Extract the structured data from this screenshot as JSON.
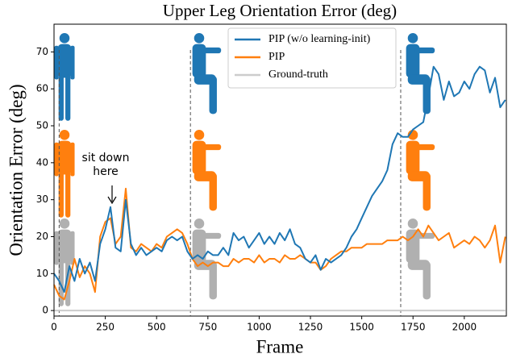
{
  "chart_data": {
    "type": "line",
    "title": "Upper Leg Orientation Error (deg)",
    "x_label": "Frame",
    "y_label": "Orientation Error (deg)",
    "x": [
      0,
      25,
      50,
      75,
      100,
      125,
      150,
      175,
      200,
      225,
      250,
      275,
      300,
      325,
      350,
      375,
      400,
      425,
      450,
      475,
      500,
      525,
      550,
      575,
      600,
      625,
      650,
      675,
      700,
      725,
      750,
      775,
      800,
      825,
      850,
      875,
      900,
      925,
      950,
      975,
      1000,
      1025,
      1050,
      1075,
      1100,
      1125,
      1150,
      1175,
      1200,
      1225,
      1250,
      1275,
      1300,
      1325,
      1350,
      1375,
      1400,
      1425,
      1450,
      1475,
      1500,
      1525,
      1550,
      1575,
      1600,
      1625,
      1650,
      1675,
      1700,
      1725,
      1750,
      1775,
      1800,
      1825,
      1850,
      1875,
      1900,
      1925,
      1950,
      1975,
      2000,
      2025,
      2050,
      2075,
      2100,
      2125,
      2150,
      2175,
      2200
    ],
    "series": [
      {
        "name": "PIP (w/o learning-init)",
        "color": "#1f77b4",
        "values": [
          10,
          8,
          5,
          12,
          8,
          14,
          10,
          13,
          8,
          18,
          22,
          28,
          17,
          16,
          30,
          18,
          15,
          17,
          15,
          16,
          17,
          16,
          19,
          20,
          19,
          20,
          16,
          14,
          15,
          14,
          16,
          15,
          15,
          17,
          15,
          21,
          19,
          20,
          17,
          19,
          21,
          18,
          20,
          18,
          21,
          19,
          22,
          18,
          17,
          14,
          13,
          15,
          11,
          14,
          13,
          14,
          15,
          17,
          20,
          22,
          25,
          28,
          31,
          33,
          35,
          38,
          45,
          48,
          47,
          47,
          49,
          50,
          51,
          58,
          66,
          64,
          57,
          62,
          58,
          59,
          62,
          60,
          64,
          66,
          65,
          59,
          63,
          55,
          57
        ]
      },
      {
        "name": "PIP",
        "color": "#ff7f0e",
        "values": [
          7,
          4,
          3,
          8,
          14,
          9,
          12,
          10,
          5,
          20,
          24,
          25,
          18,
          20,
          33,
          17,
          16,
          18,
          17,
          16,
          18,
          17,
          20,
          21,
          22,
          21,
          18,
          14,
          12,
          13,
          12,
          13,
          13,
          12,
          12,
          14,
          13,
          14,
          14,
          13,
          15,
          13,
          14,
          14,
          13,
          15,
          14,
          14,
          15,
          14,
          13,
          13,
          11,
          12,
          14,
          15,
          16,
          16,
          17,
          17,
          17,
          18,
          18,
          18,
          18,
          19,
          19,
          19,
          20,
          19,
          20,
          22,
          20,
          23,
          21,
          19,
          20,
          21,
          17,
          18,
          19,
          18,
          20,
          19,
          17,
          19,
          23,
          13,
          20
        ]
      },
      {
        "name": "Ground-truth",
        "color": "#cccccc",
        "values": [
          0,
          0,
          0,
          0,
          0,
          0,
          0,
          0,
          0,
          0,
          0,
          0,
          0,
          0,
          0,
          0,
          0,
          0,
          0,
          0,
          0,
          0,
          0,
          0,
          0,
          0,
          0,
          0,
          0,
          0,
          0,
          0,
          0,
          0,
          0,
          0,
          0,
          0,
          0,
          0,
          0,
          0,
          0,
          0,
          0,
          0,
          0,
          0,
          0,
          0,
          0,
          0,
          0,
          0,
          0,
          0,
          0,
          0,
          0,
          0,
          0,
          0,
          0,
          0,
          0,
          0,
          0,
          0,
          0,
          0,
          0,
          0,
          0,
          0,
          0,
          0,
          0,
          0,
          0,
          0,
          0,
          0,
          0,
          0,
          0,
          0,
          0,
          0,
          0
        ]
      }
    ],
    "xlim": [
      0,
      2205
    ],
    "xticks": [
      0,
      250,
      500,
      750,
      1000,
      1250,
      1500,
      1750,
      2000
    ],
    "ylim": [
      -1.5,
      77.5
    ],
    "yticks": [
      0,
      10,
      20,
      30,
      40,
      50,
      60,
      70
    ],
    "marker_lines": [
      25,
      665,
      1690
    ],
    "annotation": [
      "sit down",
      "here"
    ],
    "legend": "upper center"
  }
}
